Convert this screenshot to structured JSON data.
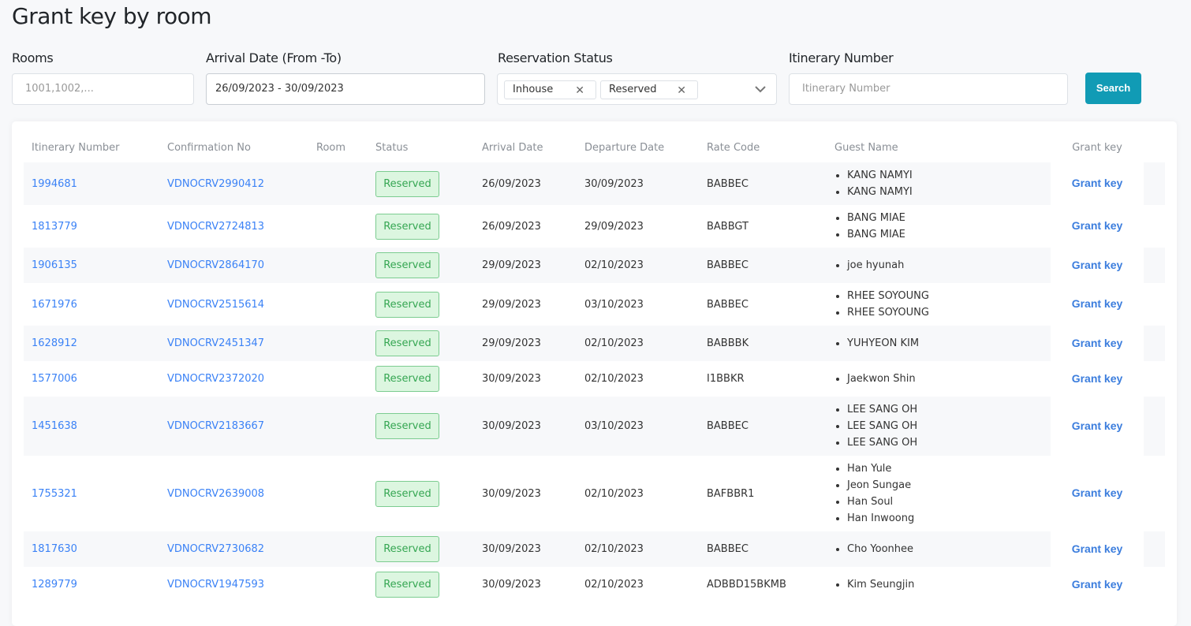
{
  "title": "Grant key by room",
  "filters": {
    "rooms_label": "Rooms",
    "rooms_placeholder": "1001,1002,...",
    "arrival_label": "Arrival Date (From -To)",
    "arrival_value": "26/09/2023 - 30/09/2023",
    "status_label": "Reservation Status",
    "status_tags": [
      "Inhouse",
      "Reserved"
    ],
    "itinerary_label": "Itinerary Number",
    "itinerary_placeholder": "Itinerary Number",
    "search_label": "Search"
  },
  "table": {
    "headers": [
      "Itinerary Number",
      "Confirmation No",
      "Room",
      "Status",
      "Arrival Date",
      "Departure Date",
      "Rate Code",
      "Guest Name",
      "Grant key"
    ],
    "rows": [
      {
        "itinerary": "1994681",
        "conf": "VDNOCRV2990412",
        "room": "",
        "status": "Reserved",
        "arrival": "26/09/2023",
        "departure": "30/09/2023",
        "rate": "BABBEC",
        "guests": [
          "KANG NAMYI",
          "KANG NAMYI"
        ],
        "action": "Grant key"
      },
      {
        "itinerary": "1813779",
        "conf": "VDNOCRV2724813",
        "room": "",
        "status": "Reserved",
        "arrival": "26/09/2023",
        "departure": "29/09/2023",
        "rate": "BABBGT",
        "guests": [
          "BANG MIAE",
          "BANG MIAE"
        ],
        "action": "Grant key"
      },
      {
        "itinerary": "1906135",
        "conf": "VDNOCRV2864170",
        "room": "",
        "status": "Reserved",
        "arrival": "29/09/2023",
        "departure": "02/10/2023",
        "rate": "BABBEC",
        "guests": [
          "joe hyunah"
        ],
        "action": "Grant key"
      },
      {
        "itinerary": "1671976",
        "conf": "VDNOCRV2515614",
        "room": "",
        "status": "Reserved",
        "arrival": "29/09/2023",
        "departure": "03/10/2023",
        "rate": "BABBEC",
        "guests": [
          "RHEE SOYOUNG",
          "RHEE SOYOUNG"
        ],
        "action": "Grant key"
      },
      {
        "itinerary": "1628912",
        "conf": "VDNOCRV2451347",
        "room": "",
        "status": "Reserved",
        "arrival": "29/09/2023",
        "departure": "02/10/2023",
        "rate": "BABBBK",
        "guests": [
          "YUHYEON KIM"
        ],
        "action": "Grant key"
      },
      {
        "itinerary": "1577006",
        "conf": "VDNOCRV2372020",
        "room": "",
        "status": "Reserved",
        "arrival": "30/09/2023",
        "departure": "02/10/2023",
        "rate": "I1BBKR",
        "guests": [
          "Jaekwon Shin"
        ],
        "action": "Grant key"
      },
      {
        "itinerary": "1451638",
        "conf": "VDNOCRV2183667",
        "room": "",
        "status": "Reserved",
        "arrival": "30/09/2023",
        "departure": "03/10/2023",
        "rate": "BABBEC",
        "guests": [
          "LEE SANG OH",
          "LEE SANG OH",
          "LEE SANG OH"
        ],
        "action": "Grant key"
      },
      {
        "itinerary": "1755321",
        "conf": "VDNOCRV2639008",
        "room": "",
        "status": "Reserved",
        "arrival": "30/09/2023",
        "departure": "02/10/2023",
        "rate": "BAFBBR1",
        "guests": [
          "Han Yule",
          "Jeon Sungae",
          "Han Soul",
          "Han Inwoong"
        ],
        "action": "Grant key"
      },
      {
        "itinerary": "1817630",
        "conf": "VDNOCRV2730682",
        "room": "",
        "status": "Reserved",
        "arrival": "30/09/2023",
        "departure": "02/10/2023",
        "rate": "BABBEC",
        "guests": [
          "Cho Yoonhee"
        ],
        "action": "Grant key"
      },
      {
        "itinerary": "1289779",
        "conf": "VDNOCRV1947593",
        "room": "",
        "status": "Reserved",
        "arrival": "30/09/2023",
        "departure": "02/10/2023",
        "rate": "ADBBD15BKMB",
        "guests": [
          "Kim Seungjin"
        ],
        "action": "Grant key"
      }
    ]
  }
}
